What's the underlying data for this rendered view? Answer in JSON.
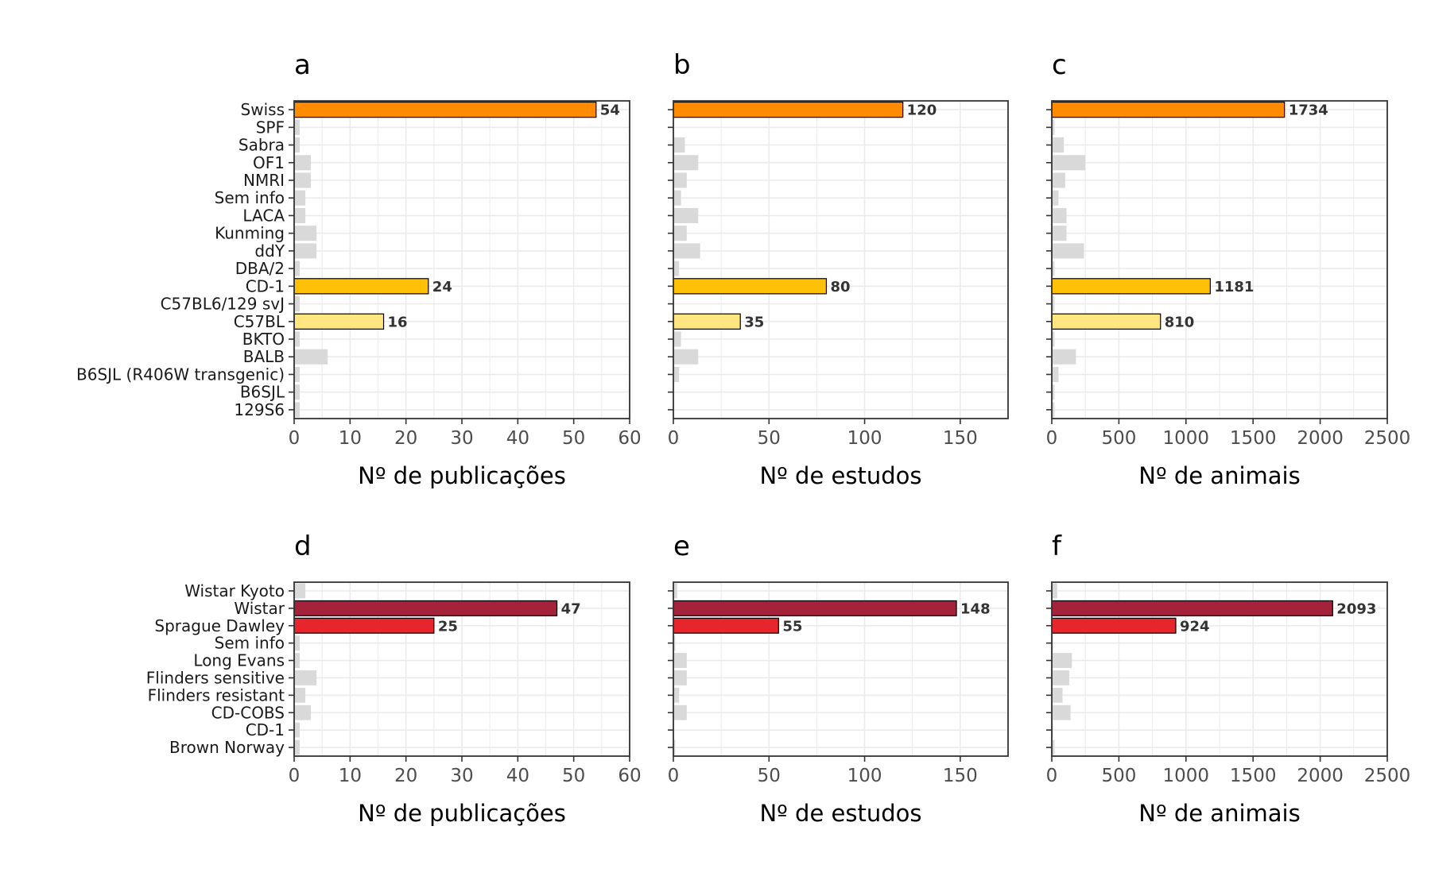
{
  "colors": {
    "gray": "#d9d9d9",
    "orange": "#ff8c00",
    "amber": "#ffc107",
    "light_yellow": "#ffe680",
    "dark_red": "#a4223a",
    "red": "#e8252c",
    "grid": "#ebebeb",
    "frame": "#333333"
  },
  "chart_data": [
    {
      "panel": "a",
      "type": "bar",
      "orientation": "horizontal",
      "xlabel": "Nº de publicações",
      "xlim": [
        0,
        60
      ],
      "xticks": [
        0,
        10,
        20,
        30,
        40,
        50,
        60
      ],
      "categories": [
        "Swiss",
        "SPF",
        "Sabra",
        "OF1",
        "NMRI",
        "Sem info",
        "LACA",
        "Kunming",
        "ddY",
        "DBA/2",
        "CD-1",
        "C57BL6/129 svJ",
        "C57BL",
        "BKTO",
        "BALB",
        "B6SJL (R406W transgenic)",
        "B6SJL",
        "129S6"
      ],
      "values": [
        54,
        1,
        1,
        3,
        3,
        2,
        2,
        4,
        4,
        1,
        24,
        1,
        16,
        1,
        6,
        1,
        1,
        1
      ],
      "highlight": {
        "Swiss": "orange",
        "CD-1": "amber",
        "C57BL": "light_yellow"
      },
      "labels": {
        "Swiss": "54",
        "CD-1": "24",
        "C57BL": "16"
      }
    },
    {
      "panel": "b",
      "type": "bar",
      "orientation": "horizontal",
      "xlabel": "Nº de estudos",
      "xlim": [
        0,
        175
      ],
      "xticks": [
        0,
        50,
        100,
        150
      ],
      "categories": [
        "Swiss",
        "SPF",
        "Sabra",
        "OF1",
        "NMRI",
        "Sem info",
        "LACA",
        "Kunming",
        "ddY",
        "DBA/2",
        "CD-1",
        "C57BL6/129 svJ",
        "C57BL",
        "BKTO",
        "BALB",
        "B6SJL (R406W transgenic)",
        "B6SJL",
        "129S6"
      ],
      "values": [
        120,
        0,
        6,
        13,
        7,
        4,
        13,
        7,
        14,
        3,
        80,
        0,
        35,
        4,
        13,
        3,
        0,
        0
      ],
      "highlight": {
        "Swiss": "orange",
        "CD-1": "amber",
        "C57BL": "light_yellow"
      },
      "labels": {
        "Swiss": "120",
        "CD-1": "80",
        "C57BL": "35"
      }
    },
    {
      "panel": "c",
      "type": "bar",
      "orientation": "horizontal",
      "xlabel": "Nº de animais",
      "xlim": [
        0,
        2500
      ],
      "xticks": [
        0,
        500,
        1000,
        1500,
        2000,
        2500
      ],
      "categories": [
        "Swiss",
        "SPF",
        "Sabra",
        "OF1",
        "NMRI",
        "Sem info",
        "LACA",
        "Kunming",
        "ddY",
        "DBA/2",
        "CD-1",
        "C57BL6/129 svJ",
        "C57BL",
        "BKTO",
        "BALB",
        "B6SJL (R406W transgenic)",
        "B6SJL",
        "129S6"
      ],
      "values": [
        1734,
        20,
        90,
        250,
        100,
        50,
        110,
        110,
        240,
        20,
        1181,
        20,
        810,
        20,
        180,
        50,
        20,
        20
      ],
      "highlight": {
        "Swiss": "orange",
        "CD-1": "amber",
        "C57BL": "light_yellow"
      },
      "labels": {
        "Swiss": "1734",
        "CD-1": "1181",
        "C57BL": "810"
      }
    },
    {
      "panel": "d",
      "type": "bar",
      "orientation": "horizontal",
      "xlabel": "Nº de publicações",
      "xlim": [
        0,
        60
      ],
      "xticks": [
        0,
        10,
        20,
        30,
        40,
        50,
        60
      ],
      "categories": [
        "Wistar Kyoto",
        "Wistar",
        "Sprague Dawley",
        "Sem info",
        "Long Evans",
        "Flinders sensitive",
        "Flinders resistant",
        "CD-COBS",
        "CD-1",
        "Brown Norway"
      ],
      "values": [
        2,
        47,
        25,
        1,
        1,
        4,
        2,
        3,
        1,
        1
      ],
      "highlight": {
        "Wistar": "dark_red",
        "Sprague Dawley": "red"
      },
      "labels": {
        "Wistar": "47",
        "Sprague Dawley": "25"
      }
    },
    {
      "panel": "e",
      "type": "bar",
      "orientation": "horizontal",
      "xlabel": "Nº de estudos",
      "xlim": [
        0,
        175
      ],
      "xticks": [
        0,
        50,
        100,
        150
      ],
      "categories": [
        "Wistar Kyoto",
        "Wistar",
        "Sprague Dawley",
        "Sem info",
        "Long Evans",
        "Flinders sensitive",
        "Flinders resistant",
        "CD-COBS",
        "CD-1",
        "Brown Norway"
      ],
      "values": [
        2,
        148,
        55,
        1,
        7,
        7,
        3,
        7,
        0,
        1
      ],
      "highlight": {
        "Wistar": "dark_red",
        "Sprague Dawley": "red"
      },
      "labels": {
        "Wistar": "148",
        "Sprague Dawley": "55"
      }
    },
    {
      "panel": "f",
      "type": "bar",
      "orientation": "horizontal",
      "xlabel": "Nº de animais",
      "xlim": [
        0,
        2500
      ],
      "xticks": [
        0,
        500,
        1000,
        1500,
        2000,
        2500
      ],
      "categories": [
        "Wistar Kyoto",
        "Wistar",
        "Sprague Dawley",
        "Sem info",
        "Long Evans",
        "Flinders sensitive",
        "Flinders resistant",
        "CD-COBS",
        "CD-1",
        "Brown Norway"
      ],
      "values": [
        40,
        2093,
        924,
        10,
        150,
        130,
        80,
        140,
        10,
        20
      ],
      "highlight": {
        "Wistar": "dark_red",
        "Sprague Dawley": "red"
      },
      "labels": {
        "Wistar": "2093",
        "Sprague Dawley": "924"
      }
    }
  ]
}
